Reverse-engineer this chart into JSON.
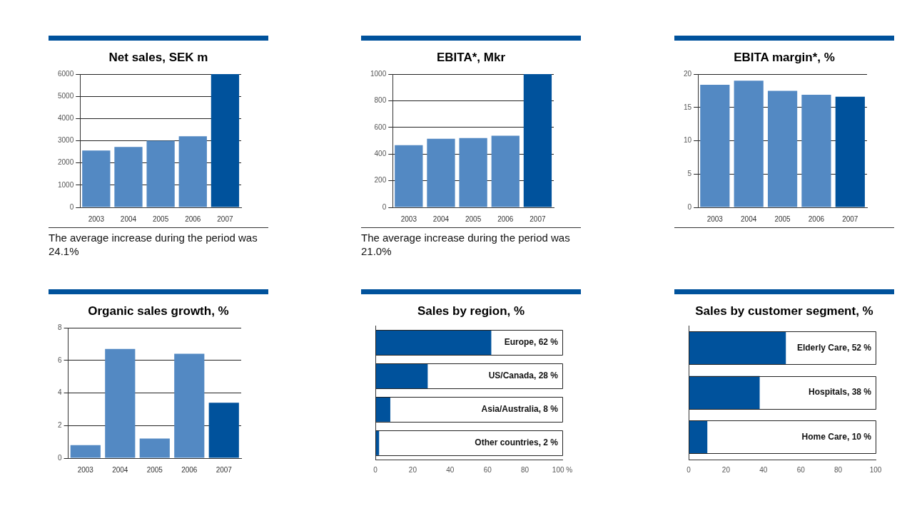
{
  "chart_data": [
    {
      "type": "bar",
      "title": "Net sales, SEK m",
      "categories": [
        "2003",
        "2004",
        "2005",
        "2006",
        "2007"
      ],
      "values": [
        2560,
        2720,
        3000,
        3200,
        6000
      ],
      "colors": [
        "#5389c3",
        "#5389c3",
        "#5389c3",
        "#5389c3",
        "#00529c"
      ],
      "ylim": [
        0,
        6000
      ],
      "yticks": [
        0,
        1000,
        2000,
        3000,
        4000,
        5000,
        6000
      ],
      "grid": "y",
      "annotations": [
        "The average increase during the period was 24.1%"
      ]
    },
    {
      "type": "bar",
      "title": "EBITA*, Mkr",
      "categories": [
        "2003",
        "2004",
        "2005",
        "2006",
        "2007"
      ],
      "values": [
        467,
        515,
        520,
        537,
        1000
      ],
      "colors": [
        "#5389c3",
        "#5389c3",
        "#5389c3",
        "#5389c3",
        "#00529c"
      ],
      "ylim": [
        0,
        1000
      ],
      "yticks": [
        0,
        200,
        400,
        600,
        800,
        1000
      ],
      "grid": "y",
      "annotations": [
        "The average increase during the period was 21.0%"
      ]
    },
    {
      "type": "bar",
      "title": "EBITA margin*, %",
      "categories": [
        "2003",
        "2004",
        "2005",
        "2006",
        "2007"
      ],
      "values": [
        18.4,
        19.0,
        17.5,
        16.9,
        16.6
      ],
      "colors": [
        "#5389c3",
        "#5389c3",
        "#5389c3",
        "#5389c3",
        "#00529c"
      ],
      "ylim": [
        0,
        20
      ],
      "yticks": [
        0,
        5,
        10,
        15,
        20
      ],
      "grid": "y"
    },
    {
      "type": "bar",
      "title": "Organic sales growth, %",
      "categories": [
        "2003",
        "2004",
        "2005",
        "2006",
        "2007"
      ],
      "values": [
        0.8,
        6.7,
        1.2,
        6.4,
        3.4
      ],
      "colors": [
        "#5389c3",
        "#5389c3",
        "#5389c3",
        "#5389c3",
        "#00529c"
      ],
      "ylim": [
        0,
        8
      ],
      "yticks": [
        0,
        2,
        4,
        6,
        8
      ],
      "grid": "y"
    },
    {
      "type": "bar",
      "title": "Sales by region, %",
      "orientation": "horizontal",
      "stacked": true,
      "tick_labels": "x",
      "categories": [
        "Europe, 62 %",
        "US/Canada, 28 %",
        "Asia/Australia, 8 %",
        "Other countries, 2 %"
      ],
      "color": "#00529c",
      "values": [
        62,
        28,
        8,
        2
      ],
      "xlim": [
        0,
        100
      ],
      "xticks": [
        0,
        20,
        40,
        60,
        80,
        {
          "value": 100,
          "label": "100 %"
        }
      ]
    },
    {
      "type": "bar",
      "title": "Sales by customer segment, %",
      "orientation": "horizontal",
      "stacked": true,
      "tick_labels": "x",
      "categories": [
        "Elderly Care, 52 %",
        "Hospitals, 38 %",
        "Home Care, 10 %"
      ],
      "color": "#00529c",
      "values": [
        52,
        38,
        10
      ],
      "xlim": [
        0,
        100
      ],
      "xticks": [
        0,
        20,
        40,
        60,
        80,
        100
      ]
    }
  ]
}
